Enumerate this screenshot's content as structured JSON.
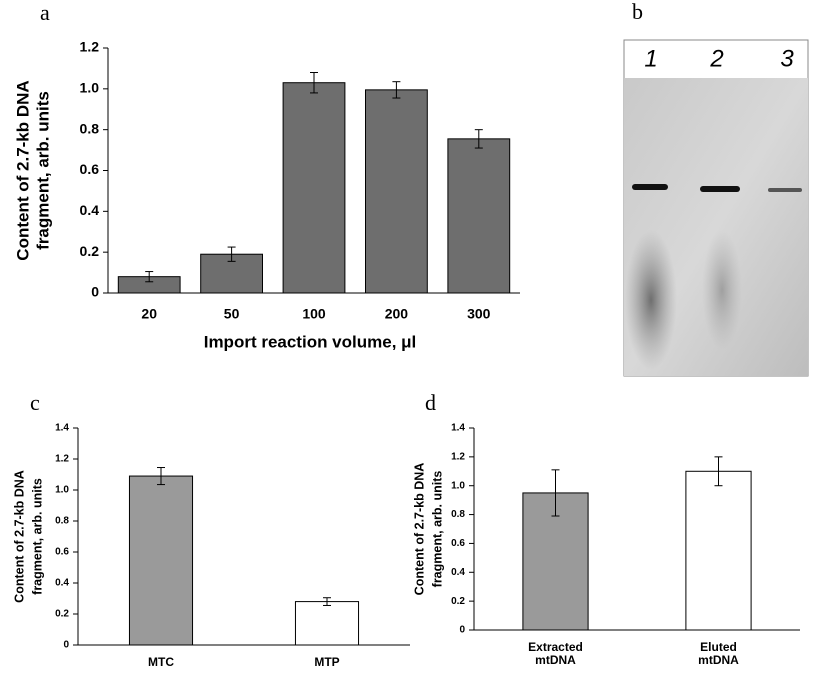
{
  "chart_data": [
    {
      "type": "bar",
      "label": "a",
      "ylabel": [
        "Content of 2.7-kb DNA",
        "fragment, arb. units"
      ],
      "xlabel": "Import reaction volume, μl",
      "categories": [
        "20",
        "50",
        "100",
        "200",
        "300"
      ],
      "values": [
        0.08,
        0.19,
        1.03,
        0.995,
        0.755
      ],
      "errors": [
        0.025,
        0.035,
        0.05,
        0.04,
        0.045
      ],
      "colors": [
        "#6e6e6e",
        "#6e6e6e",
        "#6e6e6e",
        "#6e6e6e",
        "#6e6e6e"
      ],
      "ylim": [
        0,
        1.2
      ],
      "yticks": [
        0,
        0.2,
        0.4,
        0.6,
        0.8,
        {
          "value": 1,
          "label": "1.0"
        },
        1.2
      ]
    },
    {
      "type": "bar",
      "label": "c",
      "ylabel": [
        "Content of 2.7-kb DNA",
        "fragment, arb. units"
      ],
      "categories": [
        "MTC",
        "MTP"
      ],
      "values": [
        1.09,
        0.28
      ],
      "errors": [
        0.055,
        0.025
      ],
      "colors": [
        "#9a9a9a",
        "#ffffff"
      ],
      "ylim": [
        0,
        1.4
      ],
      "yticks": [
        0,
        0.2,
        0.4,
        0.6,
        0.8,
        {
          "value": 1,
          "label": "1.0"
        },
        1.2,
        1.4
      ]
    },
    {
      "type": "bar",
      "label": "d",
      "ylabel": [
        "Content of 2.7-kb DNA",
        "fragment, arb. units"
      ],
      "categories": [
        "Extracted mtDNA",
        "Eluted mtDNA"
      ],
      "values": [
        0.95,
        1.1
      ],
      "errors": [
        0.16,
        0.1
      ],
      "colors": [
        "#9a9a9a",
        "#ffffff"
      ],
      "ylim": [
        0,
        1.4
      ],
      "yticks": [
        0,
        0.2,
        0.4,
        0.6,
        0.8,
        {
          "value": 1,
          "label": "1.0"
        },
        1.2,
        1.4
      ]
    }
  ],
  "gel": {
    "label": "b",
    "lanes": [
      "1",
      "2",
      "3"
    ]
  }
}
